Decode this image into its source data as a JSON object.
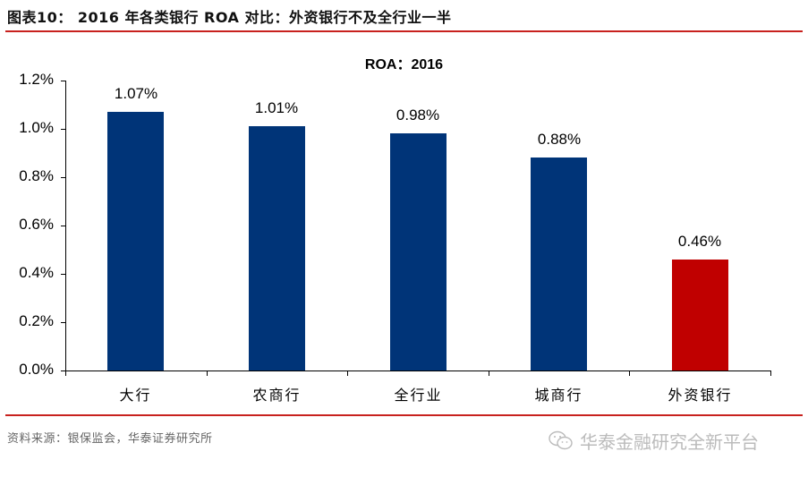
{
  "figure": {
    "title": "图表10： 2016 年各类银行 ROA 对比：外资银行不及全行业一半",
    "source": "资料来源：银保监会，华泰证券研究所",
    "watermark": "华泰金融研究全新平台",
    "watermark_icon": "wechat-icon",
    "accent_color": "#c8211e"
  },
  "chart_data": {
    "type": "bar",
    "title": "ROA：2016",
    "xlabel": "",
    "ylabel": "",
    "categories": [
      "大行",
      "农商行",
      "全行业",
      "城商行",
      "外资银行"
    ],
    "values": [
      1.07,
      1.01,
      0.98,
      0.88,
      0.46
    ],
    "value_labels": [
      "1.07%",
      "1.01%",
      "0.98%",
      "0.88%",
      "0.46%"
    ],
    "colors": [
      "#003478",
      "#003478",
      "#003478",
      "#003478",
      "#c00000"
    ],
    "unit": "%",
    "ylim": [
      0,
      1.2
    ],
    "yticks": [
      0.0,
      0.2,
      0.4,
      0.6,
      0.8,
      1.0,
      1.2
    ],
    "ytick_labels": [
      "0.0%",
      "0.2%",
      "0.4%",
      "0.6%",
      "0.8%",
      "1.0%",
      "1.2%"
    ],
    "grid": false,
    "legend": null
  }
}
